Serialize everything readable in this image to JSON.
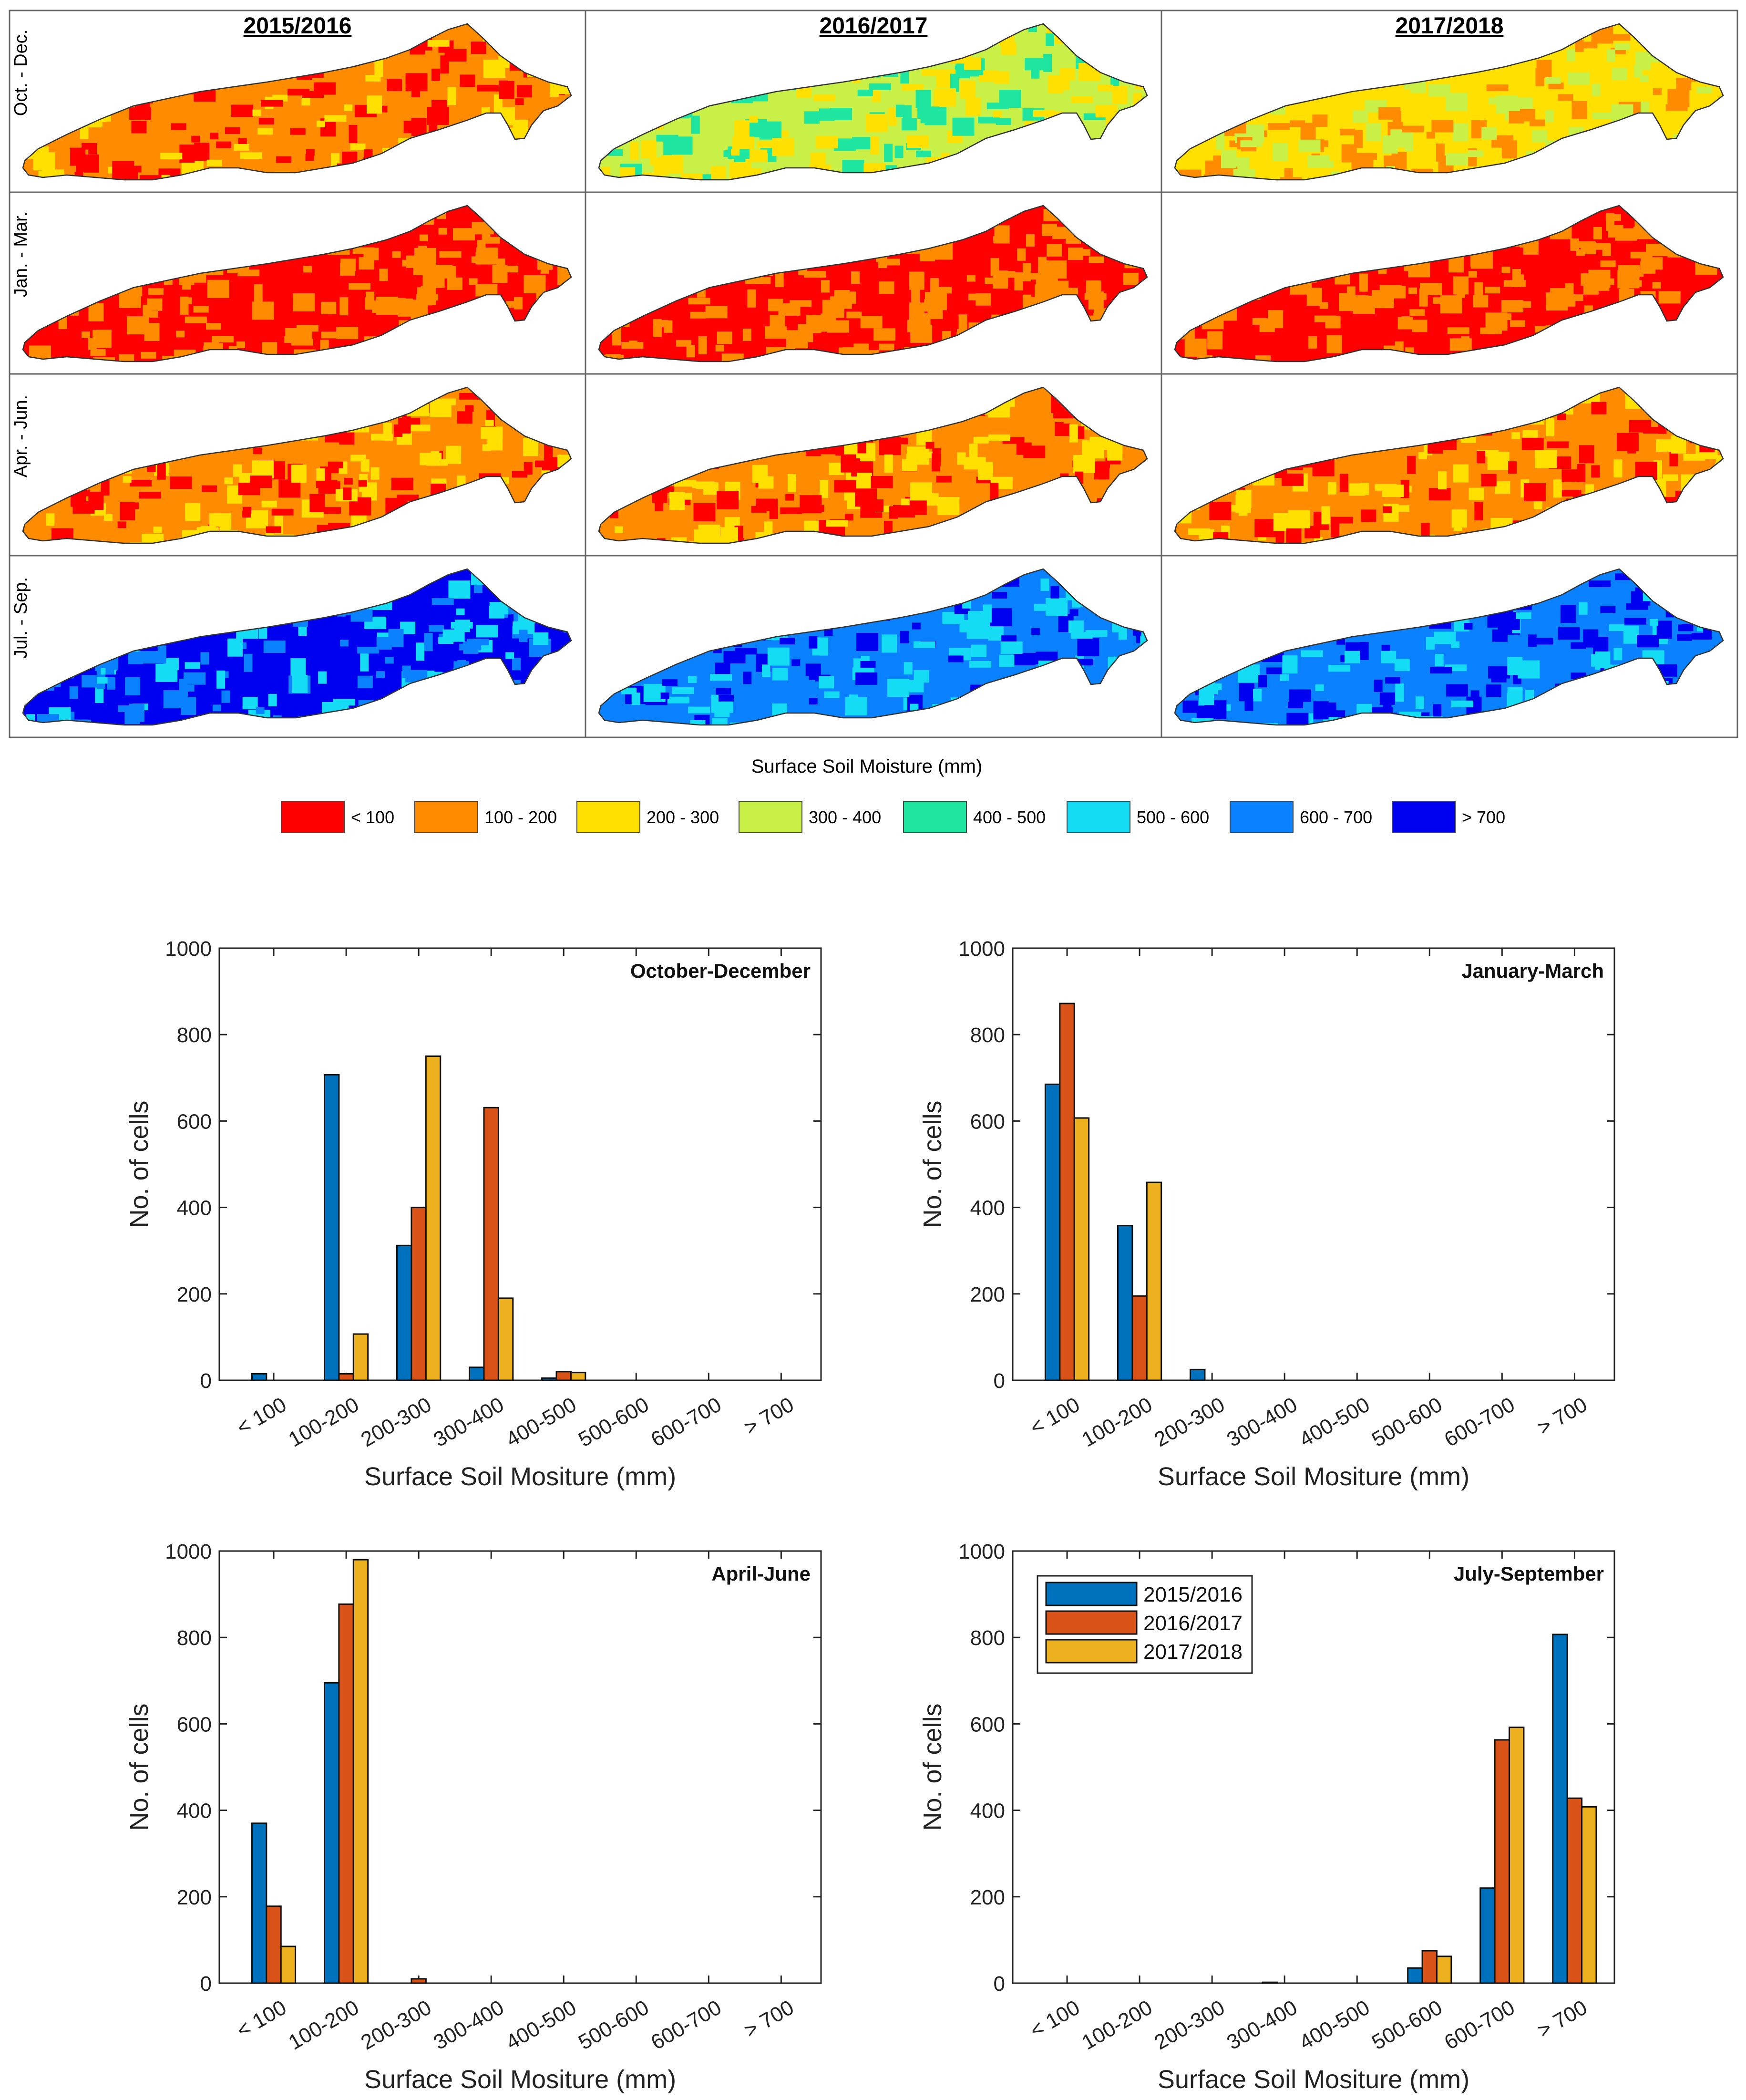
{
  "map_panel": {
    "years": [
      "2015/2016",
      "2016/2017",
      "2017/2018"
    ],
    "seasons": [
      "Oct. - Dec.",
      "Jan. - Mar.",
      "Apr. - Jun.",
      "Jul. - Sep."
    ],
    "colorbar_title": "Surface Soil Moisture (mm)",
    "legend": [
      {
        "label": "< 100",
        "color": "#ff0000"
      },
      {
        "label": "100 - 200",
        "color": "#ff8c00"
      },
      {
        "label": "200 - 300",
        "color": "#ffe000"
      },
      {
        "label": "300 - 400",
        "color": "#c8f046"
      },
      {
        "label": "400 - 500",
        "color": "#1ee6a0"
      },
      {
        "label": "500 - 600",
        "color": "#14dcf5"
      },
      {
        "label": "600 - 700",
        "color": "#0a82ff"
      },
      {
        "label": "> 700",
        "color": "#0000f0"
      }
    ],
    "dominant_classes": [
      [
        1,
        3,
        2
      ],
      [
        0,
        0,
        0
      ],
      [
        1,
        1,
        1
      ],
      [
        7,
        6,
        6
      ]
    ]
  },
  "chart_data": [
    {
      "type": "bar",
      "title": "October-December",
      "categories": [
        "< 100",
        "100-200",
        "200-300",
        "300-400",
        "400-500",
        "500-600",
        "600-700",
        "> 700"
      ],
      "series": [
        {
          "name": "2015/2016",
          "color": "#0072bd",
          "values": [
            15,
            707,
            312,
            30,
            5,
            0,
            0,
            0
          ]
        },
        {
          "name": "2016/2017",
          "color": "#d95319",
          "values": [
            0,
            15,
            400,
            631,
            20,
            0,
            0,
            0
          ]
        },
        {
          "name": "2017/2018",
          "color": "#edb120",
          "values": [
            0,
            107,
            750,
            190,
            18,
            0,
            0,
            0
          ]
        }
      ],
      "xlabel": "Surface Soil Mositure (mm)",
      "ylabel": "No. of cells",
      "yticks": [
        "0",
        "200",
        "400",
        "600",
        "800",
        "1000"
      ],
      "ylim": [
        0,
        1000
      ],
      "legend": false
    },
    {
      "type": "bar",
      "title": "January-March",
      "categories": [
        "< 100",
        "100-200",
        "200-300",
        "300-400",
        "400-500",
        "500-600",
        "600-700",
        "> 700"
      ],
      "series": [
        {
          "name": "2015/2016",
          "color": "#0072bd",
          "values": [
            685,
            358,
            25,
            0,
            0,
            0,
            0,
            0
          ]
        },
        {
          "name": "2016/2017",
          "color": "#d95319",
          "values": [
            872,
            195,
            0,
            0,
            0,
            0,
            0,
            0
          ]
        },
        {
          "name": "2017/2018",
          "color": "#edb120",
          "values": [
            607,
            458,
            0,
            0,
            0,
            0,
            0,
            0
          ]
        }
      ],
      "xlabel": "Surface Soil Mositure (mm)",
      "ylabel": "No. of cells",
      "yticks": [
        "0",
        "200",
        "400",
        "600",
        "800",
        "1000"
      ],
      "ylim": [
        0,
        1000
      ],
      "legend": false
    },
    {
      "type": "bar",
      "title": "April-June",
      "categories": [
        "< 100",
        "100-200",
        "200-300",
        "300-400",
        "400-500",
        "500-600",
        "600-700",
        "> 700"
      ],
      "series": [
        {
          "name": "2015/2016",
          "color": "#0072bd",
          "values": [
            370,
            695,
            0,
            0,
            0,
            0,
            0,
            0
          ]
        },
        {
          "name": "2016/2017",
          "color": "#d95319",
          "values": [
            178,
            877,
            10,
            0,
            0,
            0,
            0,
            0
          ]
        },
        {
          "name": "2017/2018",
          "color": "#edb120",
          "values": [
            85,
            980,
            0,
            0,
            0,
            0,
            0,
            0
          ]
        }
      ],
      "xlabel": "Surface Soil Mositure (mm)",
      "ylabel": "No. of cells",
      "yticks": [
        "0",
        "200",
        "400",
        "600",
        "800",
        "1000"
      ],
      "ylim": [
        0,
        1000
      ],
      "legend": false
    },
    {
      "type": "bar",
      "title": "July-September",
      "categories": [
        "< 100",
        "100-200",
        "200-300",
        "300-400",
        "400-500",
        "500-600",
        "600-700",
        "> 700"
      ],
      "series": [
        {
          "name": "2015/2016",
          "color": "#0072bd",
          "values": [
            0,
            0,
            0,
            2,
            0,
            35,
            220,
            807
          ]
        },
        {
          "name": "2016/2017",
          "color": "#d95319",
          "values": [
            0,
            0,
            0,
            0,
            0,
            75,
            563,
            428
          ]
        },
        {
          "name": "2017/2018",
          "color": "#edb120",
          "values": [
            0,
            0,
            0,
            0,
            0,
            62,
            592,
            408
          ]
        }
      ],
      "xlabel": "Surface Soil Mositure (mm)",
      "ylabel": "No. of cells",
      "yticks": [
        "0",
        "200",
        "400",
        "600",
        "800",
        "1000"
      ],
      "ylim": [
        0,
        1000
      ],
      "legend": true
    }
  ]
}
